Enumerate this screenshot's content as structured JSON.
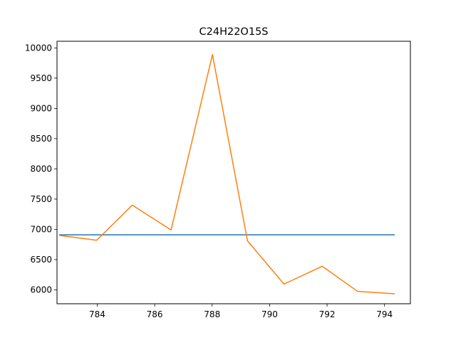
{
  "chart_data": {
    "type": "line",
    "title": "C24H22O15S",
    "xlabel": "",
    "ylabel": "",
    "xlim": [
      782.6,
      794.9
    ],
    "ylim": [
      5770,
      10110
    ],
    "xticks": [
      784,
      786,
      788,
      790,
      792,
      794
    ],
    "yticks": [
      6000,
      6500,
      7000,
      7500,
      8000,
      8500,
      9000,
      9500,
      10000
    ],
    "grid": false,
    "series": [
      {
        "color": "#1f77b4",
        "x": [
          782.69,
          794.34
        ],
        "y": [
          6910,
          6910
        ]
      },
      {
        "color": "#ff7f0e",
        "x": [
          782.69,
          783.98,
          785.22,
          786.57,
          788.01,
          789.23,
          790.5,
          791.83,
          793.06,
          794.34
        ],
        "y": [
          6900,
          6820,
          7400,
          6990,
          9890,
          6810,
          6095,
          6390,
          5975,
          5935
        ]
      }
    ]
  }
}
